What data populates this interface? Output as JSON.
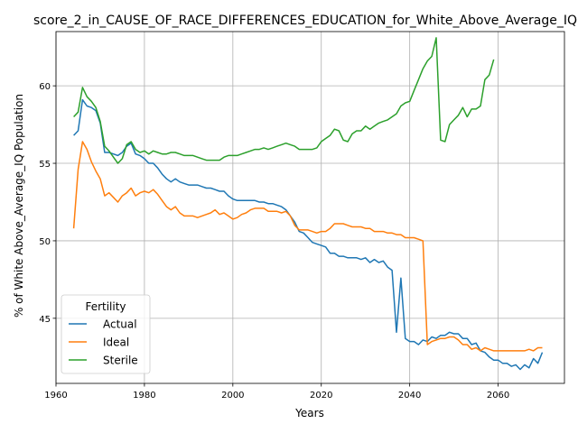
{
  "chart_data": {
    "type": "line",
    "title": "score_2_in_CAUSE_OF_RACE_DIFFERENCES_EDUCATION_for_White_Above_Average_IQ",
    "xlabel": "Years",
    "ylabel": "% of White Above_Average_IQ Population",
    "xlim": [
      1960,
      2075
    ],
    "ylim": [
      40.8,
      63.5
    ],
    "x_ticks": [
      1960,
      1980,
      2000,
      2020,
      2040,
      2060
    ],
    "y_ticks": [
      45,
      50,
      55,
      60
    ],
    "grid": true,
    "legend": {
      "title": "Fertility",
      "placement": "lower-left"
    },
    "series": [
      {
        "name": "Actual",
        "color": "#1f77b4",
        "x": [
          1964,
          1965,
          1966,
          1967,
          1968,
          1969,
          1970,
          1971,
          1972,
          1973,
          1974,
          1975,
          1976,
          1977,
          1978,
          1979,
          1980,
          1981,
          1982,
          1983,
          1984,
          1985,
          1986,
          1987,
          1988,
          1989,
          1990,
          1991,
          1992,
          1993,
          1994,
          1995,
          1996,
          1997,
          1998,
          1999,
          2000,
          2001,
          2002,
          2003,
          2004,
          2005,
          2006,
          2007,
          2008,
          2009,
          2010,
          2011,
          2012,
          2013,
          2014,
          2015,
          2016,
          2017,
          2018,
          2019,
          2020,
          2021,
          2022,
          2023,
          2024,
          2025,
          2026,
          2027,
          2028,
          2029,
          2030,
          2031,
          2032,
          2033,
          2034,
          2035,
          2036,
          2037,
          2038,
          2039,
          2040,
          2041,
          2042,
          2043,
          2044,
          2045,
          2046,
          2047,
          2048,
          2049,
          2050,
          2051,
          2052,
          2053,
          2054,
          2055,
          2056,
          2057,
          2058,
          2059,
          2060,
          2061,
          2062,
          2063,
          2064,
          2065,
          2066,
          2067,
          2068,
          2069,
          2070
        ],
        "values": [
          56.8,
          57.1,
          59.1,
          58.7,
          58.6,
          58.4,
          57.6,
          55.7,
          55.7,
          55.6,
          55.5,
          55.7,
          56.1,
          56.3,
          55.6,
          55.5,
          55.3,
          55.0,
          55.0,
          54.7,
          54.3,
          54.0,
          53.8,
          54.0,
          53.8,
          53.7,
          53.6,
          53.6,
          53.6,
          53.5,
          53.4,
          53.4,
          53.3,
          53.2,
          53.2,
          52.9,
          52.7,
          52.6,
          52.6,
          52.6,
          52.6,
          52.6,
          52.5,
          52.5,
          52.4,
          52.4,
          52.3,
          52.2,
          52.0,
          51.6,
          51.2,
          50.6,
          50.5,
          50.2,
          49.9,
          49.8,
          49.7,
          49.6,
          49.2,
          49.2,
          49.0,
          49.0,
          48.9,
          48.9,
          48.9,
          48.8,
          48.9,
          48.6,
          48.8,
          48.6,
          48.7,
          48.3,
          48.1,
          44.1,
          47.6,
          43.7,
          43.5,
          43.5,
          43.3,
          43.6,
          43.5,
          43.8,
          43.7,
          43.9,
          43.9,
          44.1,
          44.0,
          44.0,
          43.7,
          43.7,
          43.3,
          43.4,
          42.9,
          42.8,
          42.5,
          42.3,
          42.3,
          42.1,
          42.1,
          41.9,
          42.0,
          41.7,
          42.0,
          41.8,
          42.4,
          42.1,
          42.8
        ]
      },
      {
        "name": "Ideal",
        "color": "#ff7f0e",
        "x": [
          1964,
          1965,
          1966,
          1967,
          1968,
          1969,
          1970,
          1971,
          1972,
          1973,
          1974,
          1975,
          1976,
          1977,
          1978,
          1979,
          1980,
          1981,
          1982,
          1983,
          1984,
          1985,
          1986,
          1987,
          1988,
          1989,
          1990,
          1991,
          1992,
          1993,
          1994,
          1995,
          1996,
          1997,
          1998,
          1999,
          2000,
          2001,
          2002,
          2003,
          2004,
          2005,
          2006,
          2007,
          2008,
          2009,
          2010,
          2011,
          2012,
          2013,
          2014,
          2015,
          2016,
          2017,
          2018,
          2019,
          2020,
          2021,
          2022,
          2023,
          2024,
          2025,
          2026,
          2027,
          2028,
          2029,
          2030,
          2031,
          2032,
          2033,
          2034,
          2035,
          2036,
          2037,
          2038,
          2039,
          2040,
          2041,
          2042,
          2043,
          2044,
          2045,
          2046,
          2047,
          2048,
          2049,
          2050,
          2051,
          2052,
          2053,
          2054,
          2055,
          2056,
          2057,
          2058,
          2059,
          2060,
          2061,
          2062,
          2063,
          2064,
          2065,
          2066,
          2067,
          2068,
          2069,
          2070
        ],
        "values": [
          50.8,
          54.6,
          56.4,
          55.9,
          55.1,
          54.5,
          54.0,
          52.9,
          53.1,
          52.8,
          52.5,
          52.9,
          53.1,
          53.4,
          52.9,
          53.1,
          53.2,
          53.1,
          53.3,
          53.0,
          52.6,
          52.2,
          52.0,
          52.2,
          51.8,
          51.6,
          51.6,
          51.6,
          51.5,
          51.6,
          51.7,
          51.8,
          52.0,
          51.7,
          51.8,
          51.6,
          51.4,
          51.5,
          51.7,
          51.8,
          52.0,
          52.1,
          52.1,
          52.1,
          51.9,
          51.9,
          51.9,
          51.8,
          51.9,
          51.6,
          51.0,
          50.7,
          50.7,
          50.7,
          50.6,
          50.5,
          50.6,
          50.6,
          50.8,
          51.1,
          51.1,
          51.1,
          51.0,
          50.9,
          50.9,
          50.9,
          50.8,
          50.8,
          50.6,
          50.6,
          50.6,
          50.5,
          50.5,
          50.4,
          50.4,
          50.2,
          50.2,
          50.2,
          50.1,
          50.0,
          43.3,
          43.5,
          43.6,
          43.7,
          43.7,
          43.8,
          43.8,
          43.6,
          43.3,
          43.3,
          43.0,
          43.1,
          42.9,
          43.1,
          43.0,
          42.9,
          42.9,
          42.9,
          42.9,
          42.9,
          42.9,
          42.9,
          42.9,
          43.0,
          42.9,
          43.1,
          43.1
        ]
      },
      {
        "name": "Sterile",
        "color": "#2ca02c",
        "x": [
          1964,
          1965,
          1966,
          1967,
          1968,
          1969,
          1970,
          1971,
          1972,
          1973,
          1974,
          1975,
          1976,
          1977,
          1978,
          1979,
          1980,
          1981,
          1982,
          1983,
          1984,
          1985,
          1986,
          1987,
          1988,
          1989,
          1990,
          1991,
          1992,
          1993,
          1994,
          1995,
          1996,
          1997,
          1998,
          1999,
          2000,
          2001,
          2002,
          2003,
          2004,
          2005,
          2006,
          2007,
          2008,
          2009,
          2010,
          2011,
          2012,
          2013,
          2014,
          2015,
          2016,
          2017,
          2018,
          2019,
          2020,
          2021,
          2022,
          2023,
          2024,
          2025,
          2026,
          2027,
          2028,
          2029,
          2030,
          2031,
          2032,
          2033,
          2034,
          2035,
          2036,
          2037,
          2038,
          2039,
          2040,
          2041,
          2042,
          2043,
          2044,
          2045,
          2046,
          2047,
          2048,
          2049,
          2050,
          2051,
          2052,
          2053,
          2054,
          2055,
          2056,
          2057,
          2058,
          2059
        ],
        "values": [
          58.0,
          58.3,
          59.9,
          59.3,
          59.0,
          58.6,
          57.7,
          56.1,
          55.8,
          55.4,
          55.0,
          55.3,
          56.2,
          56.4,
          55.9,
          55.7,
          55.8,
          55.6,
          55.8,
          55.7,
          55.6,
          55.6,
          55.7,
          55.7,
          55.6,
          55.5,
          55.5,
          55.5,
          55.4,
          55.3,
          55.2,
          55.2,
          55.2,
          55.2,
          55.4,
          55.5,
          55.5,
          55.5,
          55.6,
          55.7,
          55.8,
          55.9,
          55.9,
          56.0,
          55.9,
          56.0,
          56.1,
          56.2,
          56.3,
          56.2,
          56.1,
          55.9,
          55.9,
          55.9,
          55.9,
          56.0,
          56.4,
          56.6,
          56.8,
          57.2,
          57.1,
          56.5,
          56.4,
          56.9,
          57.1,
          57.1,
          57.4,
          57.2,
          57.4,
          57.6,
          57.7,
          57.8,
          58.0,
          58.2,
          58.7,
          58.9,
          59.0,
          59.7,
          60.4,
          61.1,
          61.6,
          61.9,
          63.1,
          56.5,
          56.4,
          57.5,
          57.8,
          58.1,
          58.6,
          58.0,
          58.5,
          58.5,
          58.7,
          60.4,
          60.7,
          61.7
        ]
      }
    ]
  }
}
